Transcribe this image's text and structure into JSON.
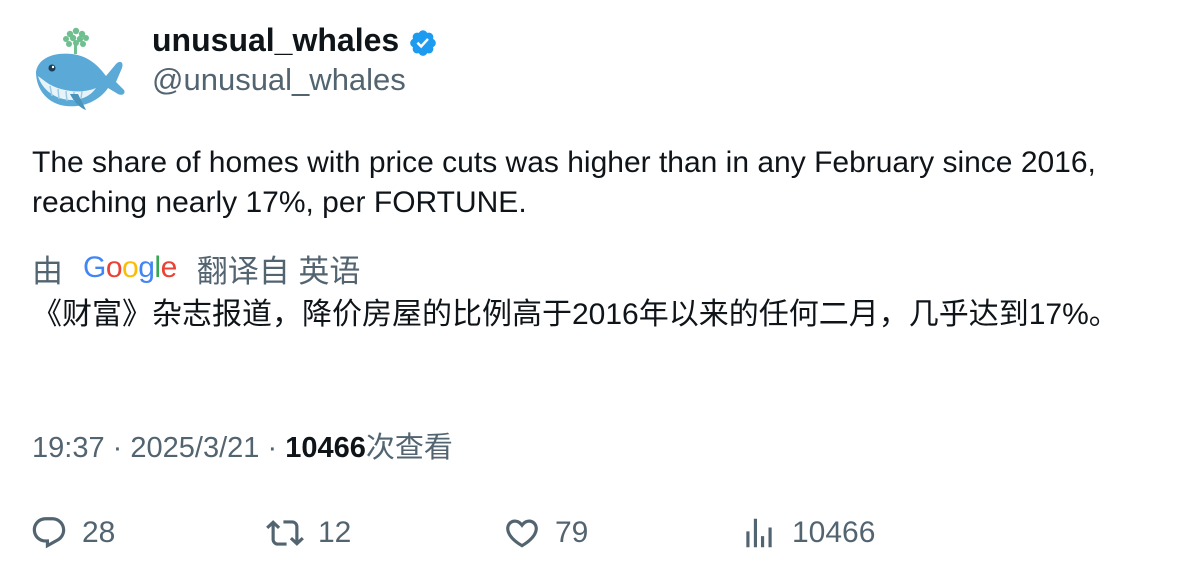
{
  "author": {
    "name": "unusual_whales",
    "handle": "@unusual_whales",
    "verified": true,
    "avatar_icon": "whale-icon"
  },
  "tweet": {
    "text": "The share of homes with price cuts was higher than in any February since 2016, reaching nearly 17%, per FORTUNE."
  },
  "translation": {
    "prefix": "由",
    "provider": "Google",
    "suffix": "翻译自 英语",
    "text": "《财富》杂志报道，降价房屋的比例高于2016年以来的任何二月，几乎达到17%。"
  },
  "meta": {
    "time": "19:37",
    "date": "2025/3/21",
    "separator": "·",
    "views_count": "10466",
    "views_label": "次查看"
  },
  "actions": {
    "replies": "28",
    "retweets": "12",
    "likes": "79",
    "views": "10466"
  },
  "colors": {
    "primary_text": "#0f1419",
    "secondary_text": "#536471",
    "verified_blue": "#1d9bf0"
  }
}
